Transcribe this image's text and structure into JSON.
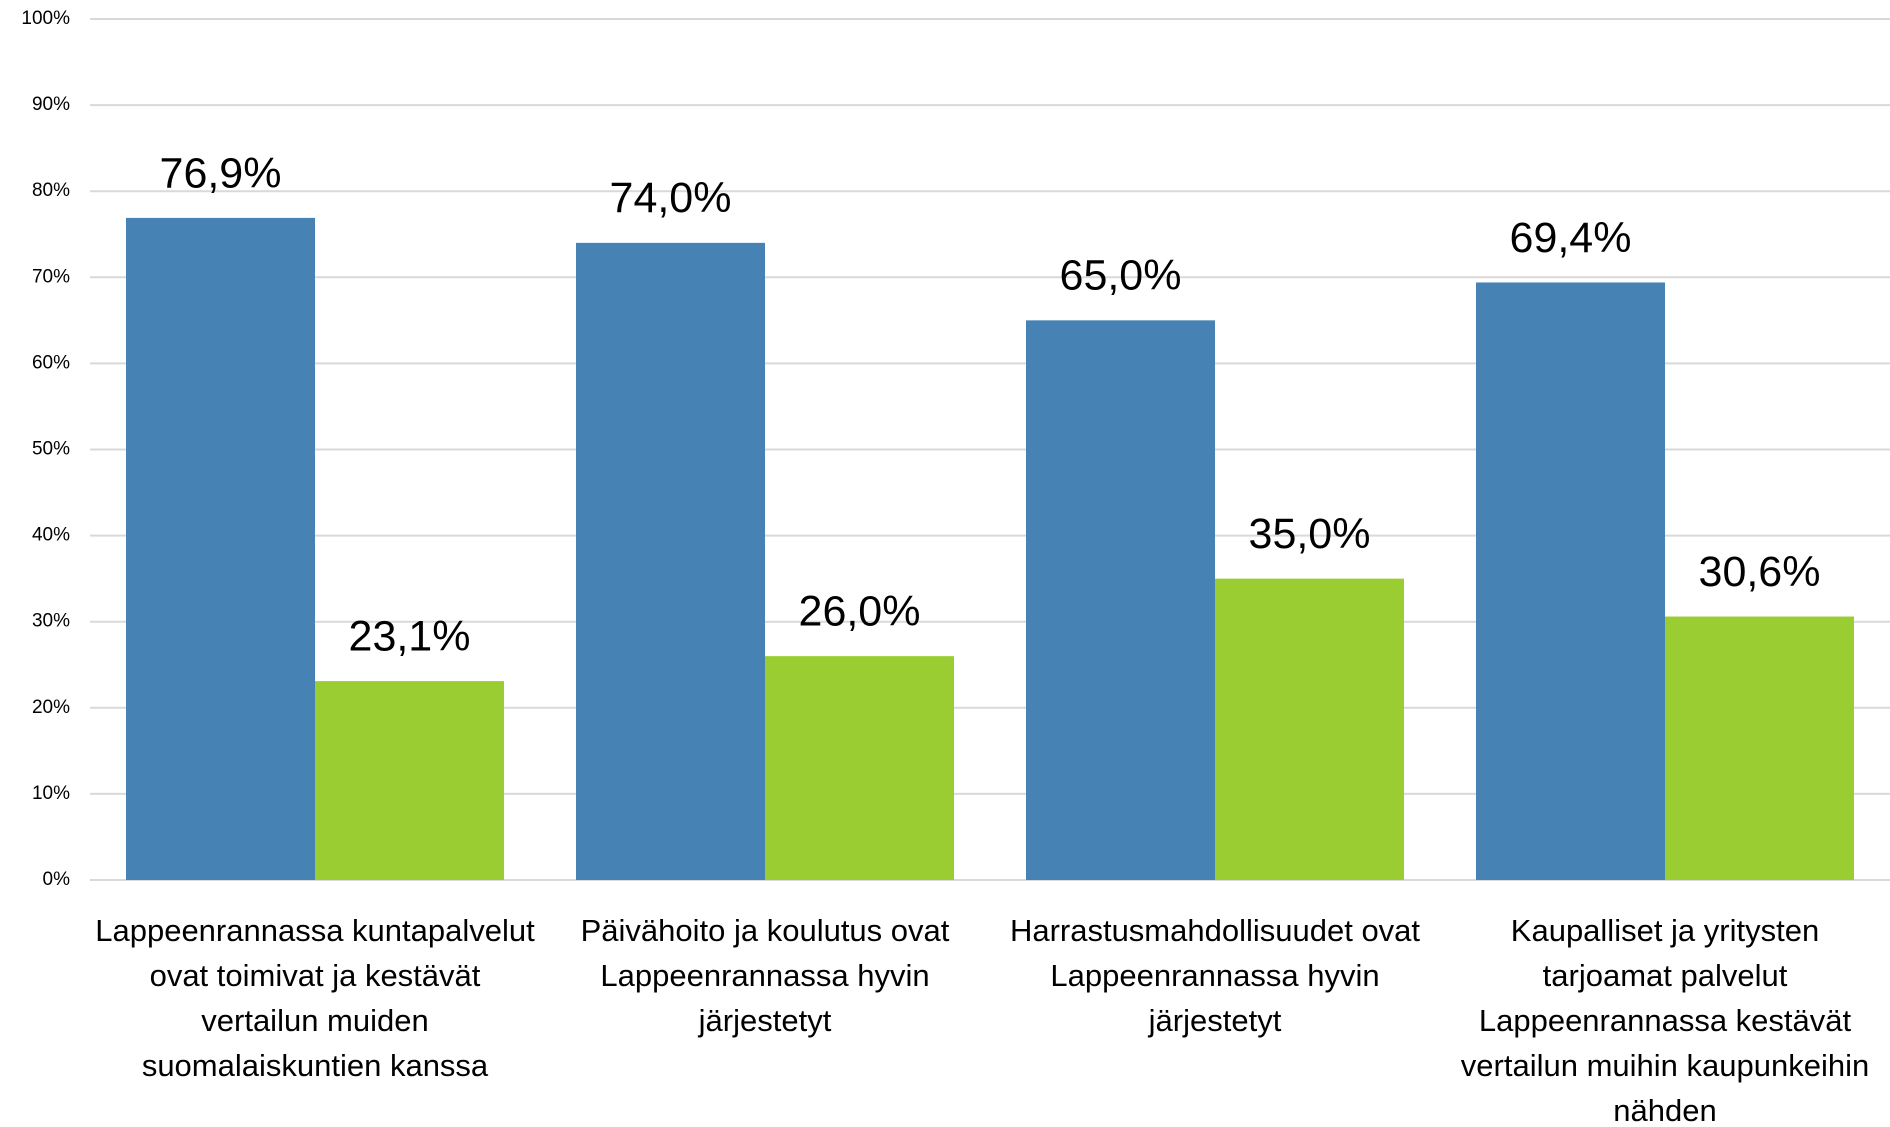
{
  "chart_data": {
    "type": "bar",
    "categories": [
      "Lappeenrannassa kuntapalvelut ovat toimivat ja kestävät vertailun muiden suomalaiskuntien kanssa",
      "Päivähoito ja koulutus ovat Lappeenrannassa hyvin järjestetyt",
      "Harrastusmahdollisuudet ovat Lappeenrannassa hyvin järjestetyt",
      "Kaupalliset ja yritysten tarjoamat palvelut Lappeenrannassa kestävät vertailun muihin kaupunkeihin nähden"
    ],
    "series": [
      {
        "color": "#4682b4",
        "values": [
          76.9,
          74.0,
          65.0,
          69.4
        ],
        "value_labels": [
          "76,9%",
          "74,0%",
          "65,0%",
          "69,4%"
        ]
      },
      {
        "color": "#9acd32",
        "values": [
          23.1,
          26.0,
          35.0,
          30.6
        ],
        "value_labels": [
          "23,1%",
          "26,0%",
          "35,0%",
          "30,6%"
        ]
      }
    ],
    "ylim": [
      0,
      100
    ],
    "yticks": [
      {
        "value": 0,
        "label": "0%"
      },
      {
        "value": 10,
        "label": "10%"
      },
      {
        "value": 20,
        "label": "20%"
      },
      {
        "value": 30,
        "label": "30%"
      },
      {
        "value": 40,
        "label": "40%"
      },
      {
        "value": 50,
        "label": "50%"
      },
      {
        "value": 60,
        "label": "60%"
      },
      {
        "value": 70,
        "label": "70%"
      },
      {
        "value": 80,
        "label": "80%"
      },
      {
        "value": 90,
        "label": "90%"
      },
      {
        "value": 100,
        "label": "100%"
      }
    ],
    "grid": true
  }
}
